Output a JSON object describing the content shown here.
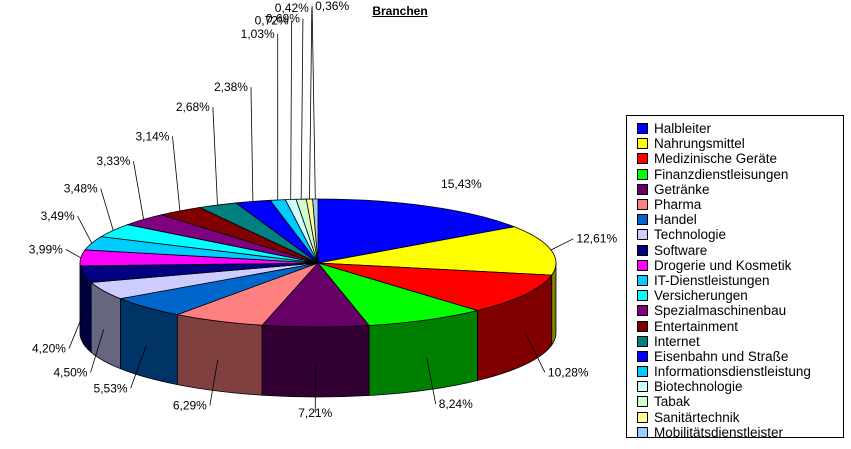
{
  "chart_data": {
    "type": "pie",
    "title": "Branchen",
    "legend_position": "right",
    "slices": [
      {
        "name": "Halbleiter",
        "value": 15.43,
        "label": "15,43%",
        "color": "#0000FF"
      },
      {
        "name": "Nahrungsmittel",
        "value": 12.61,
        "label": "12,61%",
        "color": "#FFFF00"
      },
      {
        "name": "Medizinische Geräte",
        "value": 10.28,
        "label": "10,28%",
        "color": "#FF0000"
      },
      {
        "name": "Finanzdienstleisungen",
        "value": 8.24,
        "label": "8,24%",
        "color": "#00FF00"
      },
      {
        "name": "Getränke",
        "value": 7.21,
        "label": "7,21%",
        "color": "#660066"
      },
      {
        "name": "Pharma",
        "value": 6.29,
        "label": "6,29%",
        "color": "#FF8080"
      },
      {
        "name": "Handel",
        "value": 5.53,
        "label": "5,53%",
        "color": "#0066CC"
      },
      {
        "name": "Technologie",
        "value": 4.5,
        "label": "4,50%",
        "color": "#CCCCFF"
      },
      {
        "name": "Software",
        "value": 4.2,
        "label": "4,20%",
        "color": "#000080"
      },
      {
        "name": "Drogerie und Kosmetik",
        "value": 3.99,
        "label": "3,99%",
        "color": "#FF00FF"
      },
      {
        "name": "IT-Dienstleistungen",
        "value": 3.49,
        "label": "3,49%",
        "color": "#00CCFF"
      },
      {
        "name": "Versicherungen",
        "value": 3.48,
        "label": "3,48%",
        "color": "#00FFFF"
      },
      {
        "name": "Spezialmaschinenbau",
        "value": 3.33,
        "label": "3,33%",
        "color": "#800080"
      },
      {
        "name": "Entertainment",
        "value": 3.14,
        "label": "3,14%",
        "color": "#800000"
      },
      {
        "name": "Internet",
        "value": 2.68,
        "label": "2,68%",
        "color": "#008080"
      },
      {
        "name": "Eisenbahn und Straße",
        "value": 2.38,
        "label": "2,38%",
        "color": "#0000FF"
      },
      {
        "name": "Informationsdienstleistung",
        "value": 1.03,
        "label": "1,03%",
        "color": "#00CCFF"
      },
      {
        "name": "Biotechnologie",
        "value": 0.72,
        "label": "0,72%",
        "color": "#CCFFFF"
      },
      {
        "name": "Tabak",
        "value": 0.69,
        "label": "0,69%",
        "color": "#CCFFCC"
      },
      {
        "name": "Sanitärtechnik",
        "value": 0.42,
        "label": "0,42%",
        "color": "#FFFF99"
      },
      {
        "name": "Mobilitätsdienstleister",
        "value": 0.36,
        "label": "0,36%",
        "color": "#99CCFF"
      }
    ]
  }
}
